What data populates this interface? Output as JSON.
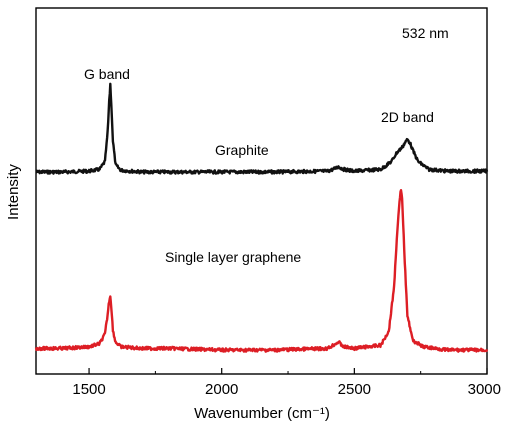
{
  "chart_data": {
    "type": "line",
    "xlabel": "Wavenumber (cm⁻¹)",
    "ylabel": "Intensity",
    "xlim": [
      1300,
      3000
    ],
    "x_ticks": [
      1500,
      2000,
      2500,
      3000
    ],
    "y_ticks_labeled": false,
    "grid": false,
    "legend": "none",
    "annotations": {
      "excitation": "532 nm",
      "g_band": "G band",
      "d2_band": "2D band",
      "graphite": "Graphite",
      "graphene": "Single layer graphene"
    },
    "series": [
      {
        "name": "Graphite",
        "color": "#111111",
        "x": [
          1300,
          1400,
          1500,
          1540,
          1560,
          1570,
          1575,
          1580,
          1585,
          1590,
          1600,
          1620,
          1700,
          1800,
          2000,
          2200,
          2400,
          2420,
          2440,
          2460,
          2500,
          2600,
          2640,
          2660,
          2680,
          2690,
          2700,
          2710,
          2720,
          2740,
          2780,
          2850,
          2900,
          3000
        ],
        "y": [
          0.0,
          0.0,
          0.01,
          0.03,
          0.12,
          0.45,
          0.75,
          1.0,
          0.7,
          0.35,
          0.08,
          0.02,
          0.0,
          0.0,
          0.0,
          0.0,
          0.01,
          0.03,
          0.06,
          0.03,
          0.01,
          0.03,
          0.12,
          0.22,
          0.28,
          0.33,
          0.37,
          0.33,
          0.25,
          0.12,
          0.03,
          0.01,
          0.01,
          0.01
        ]
      },
      {
        "name": "Single layer graphene",
        "color": "#dd1e25",
        "x": [
          1300,
          1400,
          1500,
          1540,
          1560,
          1570,
          1575,
          1580,
          1585,
          1590,
          1600,
          1620,
          1700,
          1800,
          2000,
          2200,
          2400,
          2420,
          2440,
          2460,
          2500,
          2600,
          2630,
          2650,
          2660,
          2670,
          2675,
          2680,
          2690,
          2700,
          2720,
          2760,
          2850,
          3000
        ],
        "y": [
          0.01,
          0.01,
          0.02,
          0.04,
          0.1,
          0.22,
          0.3,
          0.34,
          0.25,
          0.12,
          0.05,
          0.02,
          0.01,
          0.01,
          0.0,
          0.0,
          0.01,
          0.03,
          0.05,
          0.02,
          0.01,
          0.03,
          0.12,
          0.4,
          0.7,
          0.92,
          1.0,
          0.95,
          0.55,
          0.22,
          0.06,
          0.02,
          0.0,
          0.0
        ]
      }
    ]
  }
}
